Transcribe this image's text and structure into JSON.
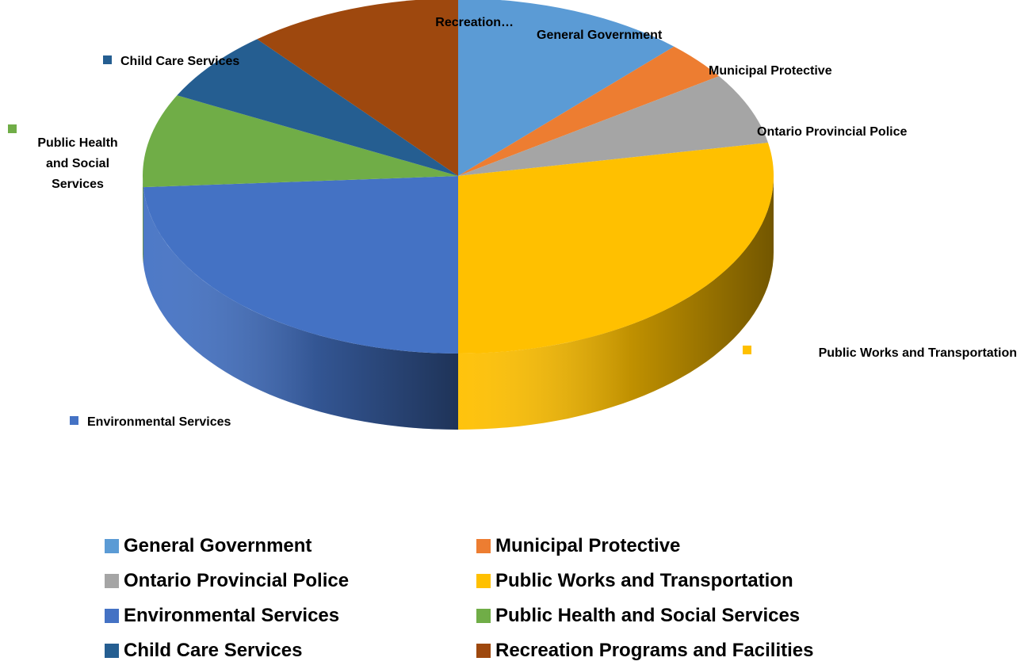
{
  "chart_data": {
    "type": "pie",
    "style": "3d",
    "title": "",
    "series": [
      {
        "name": "General Government",
        "value": 12,
        "color": "#5B9BD5",
        "label": "General Government"
      },
      {
        "name": "Municipal Protective",
        "value": 3.5,
        "color": "#ED7D31",
        "label": "Municipal Protective"
      },
      {
        "name": "Ontario Provincial Police",
        "value": 6.5,
        "color": "#A5A5A5",
        "label": "Ontario Provincial Police"
      },
      {
        "name": "Public Works and Transportation",
        "value": 28,
        "color": "#FFC000",
        "label": "Public Works and Transportation"
      },
      {
        "name": "Environmental Services",
        "value": 24,
        "color": "#4472C4",
        "label": "Environmental Services"
      },
      {
        "name": "Public Health and Social Services",
        "value": 8.5,
        "color": "#70AD47",
        "label": "Public Health and Social Services"
      },
      {
        "name": "Child Care Services",
        "value": 6.5,
        "color": "#255E91",
        "label": "Child Care Services"
      },
      {
        "name": "Recreation Programs and Facilities",
        "value": 11,
        "color": "#9E480E",
        "label": "Recreation…"
      }
    ],
    "legend_position": "bottom"
  }
}
